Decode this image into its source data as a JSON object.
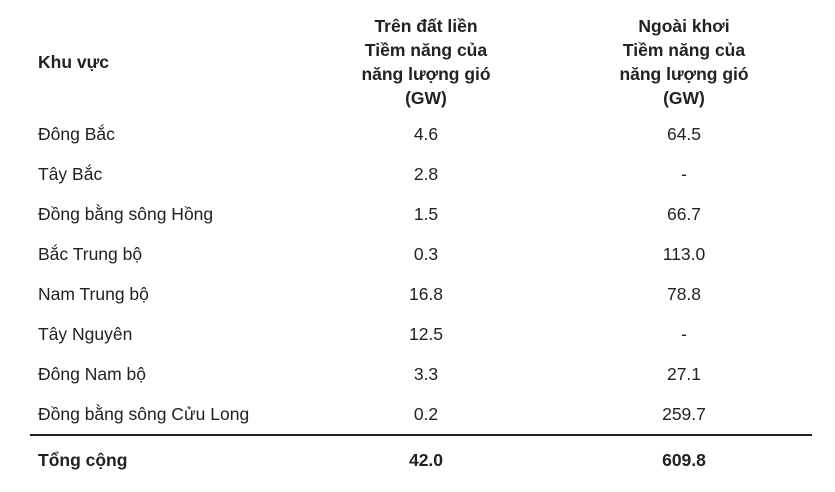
{
  "header": {
    "region": "Khu vực",
    "onshore": [
      "Trên đất liền",
      "Tiềm năng của",
      "năng lượng gió",
      "(GW)"
    ],
    "offshore": [
      "Ngoài khơi",
      "Tiềm năng của",
      "năng lượng gió",
      "(GW)"
    ]
  },
  "rows": [
    {
      "region": "Đông Bắc",
      "onshore": "4.6",
      "offshore": "64.5"
    },
    {
      "region": "Tây Bắc",
      "onshore": "2.8",
      "offshore": "-"
    },
    {
      "region": "Đồng bằng sông Hồng",
      "onshore": "1.5",
      "offshore": "66.7"
    },
    {
      "region": "Bắc Trung bộ",
      "onshore": "0.3",
      "offshore": "113.0"
    },
    {
      "region": "Nam Trung bộ",
      "onshore": "16.8",
      "offshore": "78.8"
    },
    {
      "region": "Tây Nguyên",
      "onshore": "12.5",
      "offshore": "-"
    },
    {
      "region": "Đông Nam bộ",
      "onshore": "3.3",
      "offshore": "27.1"
    },
    {
      "region": "Đồng bằng sông Cửu Long",
      "onshore": "0.2",
      "offshore": "259.7"
    }
  ],
  "total": {
    "region": "Tổng cộng",
    "onshore": "42.0",
    "offshore": "609.8"
  }
}
